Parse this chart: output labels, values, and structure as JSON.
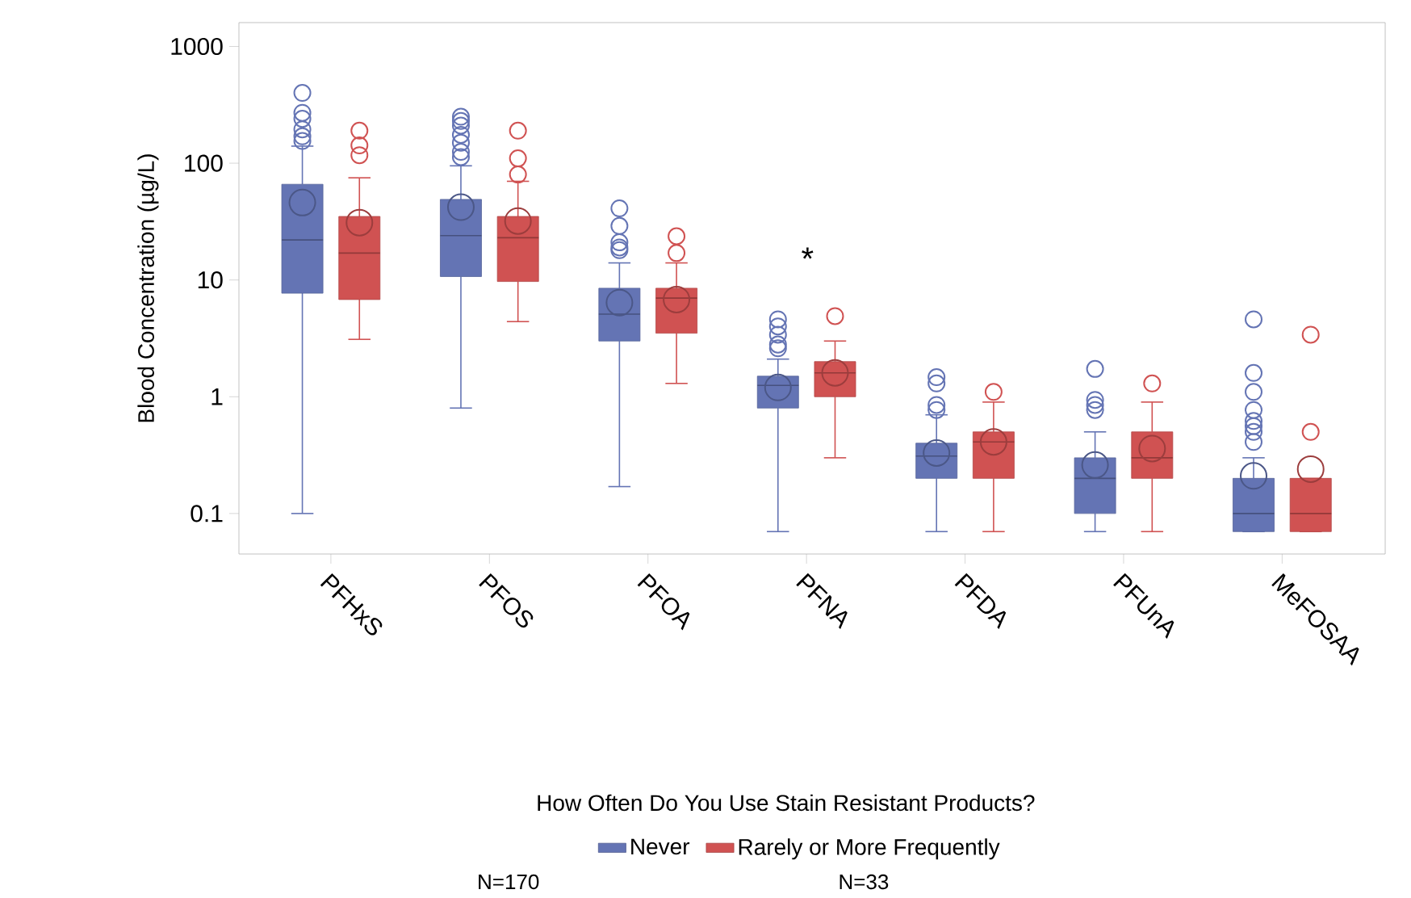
{
  "chart_data": {
    "type": "box",
    "categories": [
      "PFHxS",
      "PFOS",
      "PFOA",
      "PFNA",
      "PFDA",
      "PFUnA",
      "MeFOSAA"
    ],
    "ylabel": "Blood Concentration (µg/L)",
    "legend_title": "How Often Do You Use Stain Resistant Products?",
    "log": "y",
    "ylim": [
      0.045,
      1600
    ],
    "yticks": [
      0.1,
      1,
      10,
      100,
      1000
    ],
    "legend": "bottom",
    "grid": false,
    "series": [
      {
        "name": "Never",
        "color": "#6474b4",
        "boxes": [
          {
            "low": 0.1,
            "q1": 7.7,
            "median": 22,
            "q3": 66,
            "high": 140,
            "mean": 46,
            "outliers": [
              155,
              170,
              195,
              240,
              270,
              400
            ]
          },
          {
            "low": 0.8,
            "q1": 10.7,
            "median": 24,
            "q3": 49,
            "high": 95,
            "mean": 42,
            "outliers": [
              113,
              125,
              150,
              175,
              210,
              230,
              250
            ]
          },
          {
            "low": 0.17,
            "q1": 3,
            "median": 5.1,
            "q3": 8.5,
            "high": 14,
            "mean": 6.4,
            "outliers": [
              18,
              19,
              21,
              29,
              41
            ]
          },
          {
            "low": 0.07,
            "q1": 0.8,
            "median": 1.25,
            "q3": 1.5,
            "high": 2.1,
            "mean": 1.2,
            "outliers": [
              2.6,
              2.8,
              3.4,
              4,
              4.6
            ]
          },
          {
            "low": 0.07,
            "q1": 0.2,
            "median": 0.31,
            "q3": 0.4,
            "high": 0.7,
            "mean": 0.33,
            "outliers": [
              0.77,
              0.85,
              1.3,
              1.47
            ]
          },
          {
            "low": 0.07,
            "q1": 0.1,
            "median": 0.2,
            "q3": 0.3,
            "high": 0.5,
            "mean": 0.26,
            "outliers": [
              0.77,
              0.85,
              0.94,
              1.73
            ]
          },
          {
            "low": 0.07,
            "q1": 0.07,
            "median": 0.1,
            "q3": 0.2,
            "high": 0.3,
            "mean": 0.21,
            "outliers": [
              0.41,
              0.5,
              0.56,
              0.62,
              0.77,
              1.1,
              1.6,
              4.6
            ]
          }
        ]
      },
      {
        "name": "Rarely or More Frequently",
        "color": "#d05252",
        "boxes": [
          {
            "low": 3.1,
            "q1": 6.8,
            "median": 17,
            "q3": 35,
            "high": 75,
            "mean": 31,
            "outliers": [
              117,
              142,
              190
            ]
          },
          {
            "low": 4.4,
            "q1": 9.7,
            "median": 23,
            "q3": 35,
            "high": 70,
            "mean": 32,
            "outliers": [
              80,
              110,
              190
            ]
          },
          {
            "low": 1.3,
            "q1": 3.5,
            "median": 7,
            "q3": 8.5,
            "high": 14,
            "mean": 6.8,
            "outliers": [
              17,
              23.7
            ]
          },
          {
            "low": 0.3,
            "q1": 1,
            "median": 1.6,
            "q3": 2,
            "high": 3,
            "mean": 1.6,
            "outliers": [
              4.9
            ]
          },
          {
            "low": 0.07,
            "q1": 0.2,
            "median": 0.41,
            "q3": 0.5,
            "high": 0.9,
            "mean": 0.41,
            "outliers": [
              1.1
            ]
          },
          {
            "low": 0.07,
            "q1": 0.2,
            "median": 0.3,
            "q3": 0.5,
            "high": 0.9,
            "mean": 0.36,
            "outliers": [
              1.3
            ]
          },
          {
            "low": 0.07,
            "q1": 0.07,
            "median": 0.1,
            "q3": 0.2,
            "high": 0.2,
            "mean": 0.24,
            "outliers": [
              0.5,
              3.4
            ]
          }
        ]
      }
    ],
    "annotations": [
      "*",
      "N=170",
      "N=33"
    ]
  }
}
